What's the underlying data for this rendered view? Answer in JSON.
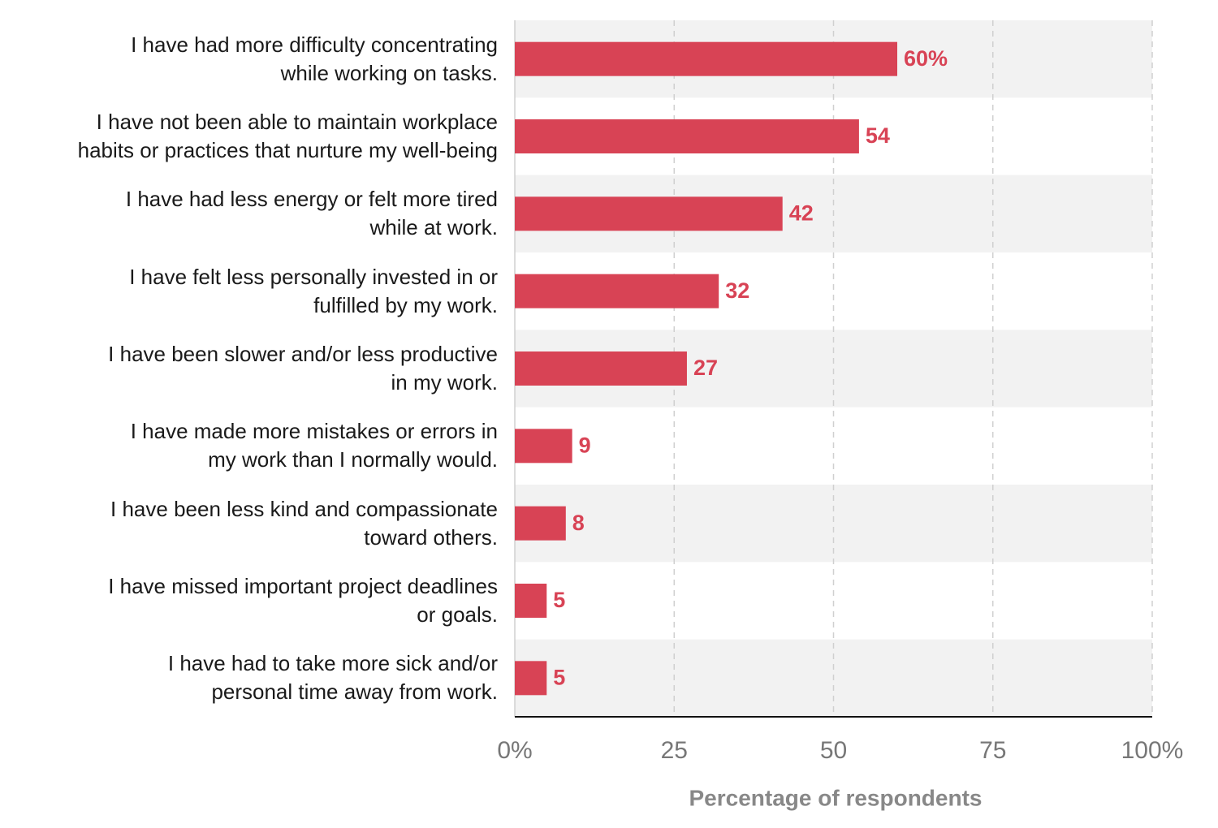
{
  "chart_data": {
    "type": "bar",
    "orientation": "horizontal",
    "categories": [
      "I have had more difficulty concentrating\nwhile working on tasks.",
      "I have not been able to maintain workplace\nhabits or practices that nurture my well-being",
      "I have had less energy or felt more tired\nwhile at work.",
      "I have felt less personally invested in or\nfulfilled by my work.",
      "I have been slower and/or less productive\nin my work.",
      "I have made more mistakes or errors in\nmy work than I normally would.",
      "I have been less kind and compassionate\ntoward others.",
      "I have missed important project deadlines\nor goals.",
      "I have had to take more sick and/or\npersonal time away from work."
    ],
    "values": [
      60,
      54,
      42,
      32,
      27,
      9,
      8,
      5,
      5
    ],
    "value_labels": [
      "60%",
      "54",
      "42",
      "32",
      "27",
      "9",
      "8",
      "5",
      "5"
    ],
    "color": "#d84355",
    "xlim": [
      0,
      100
    ],
    "xticks": [
      {
        "value": 0,
        "label": "0%"
      },
      25,
      50,
      75,
      {
        "value": 100,
        "label": "100%"
      }
    ],
    "xlabel": "Percentage of respondents",
    "grid": true
  }
}
